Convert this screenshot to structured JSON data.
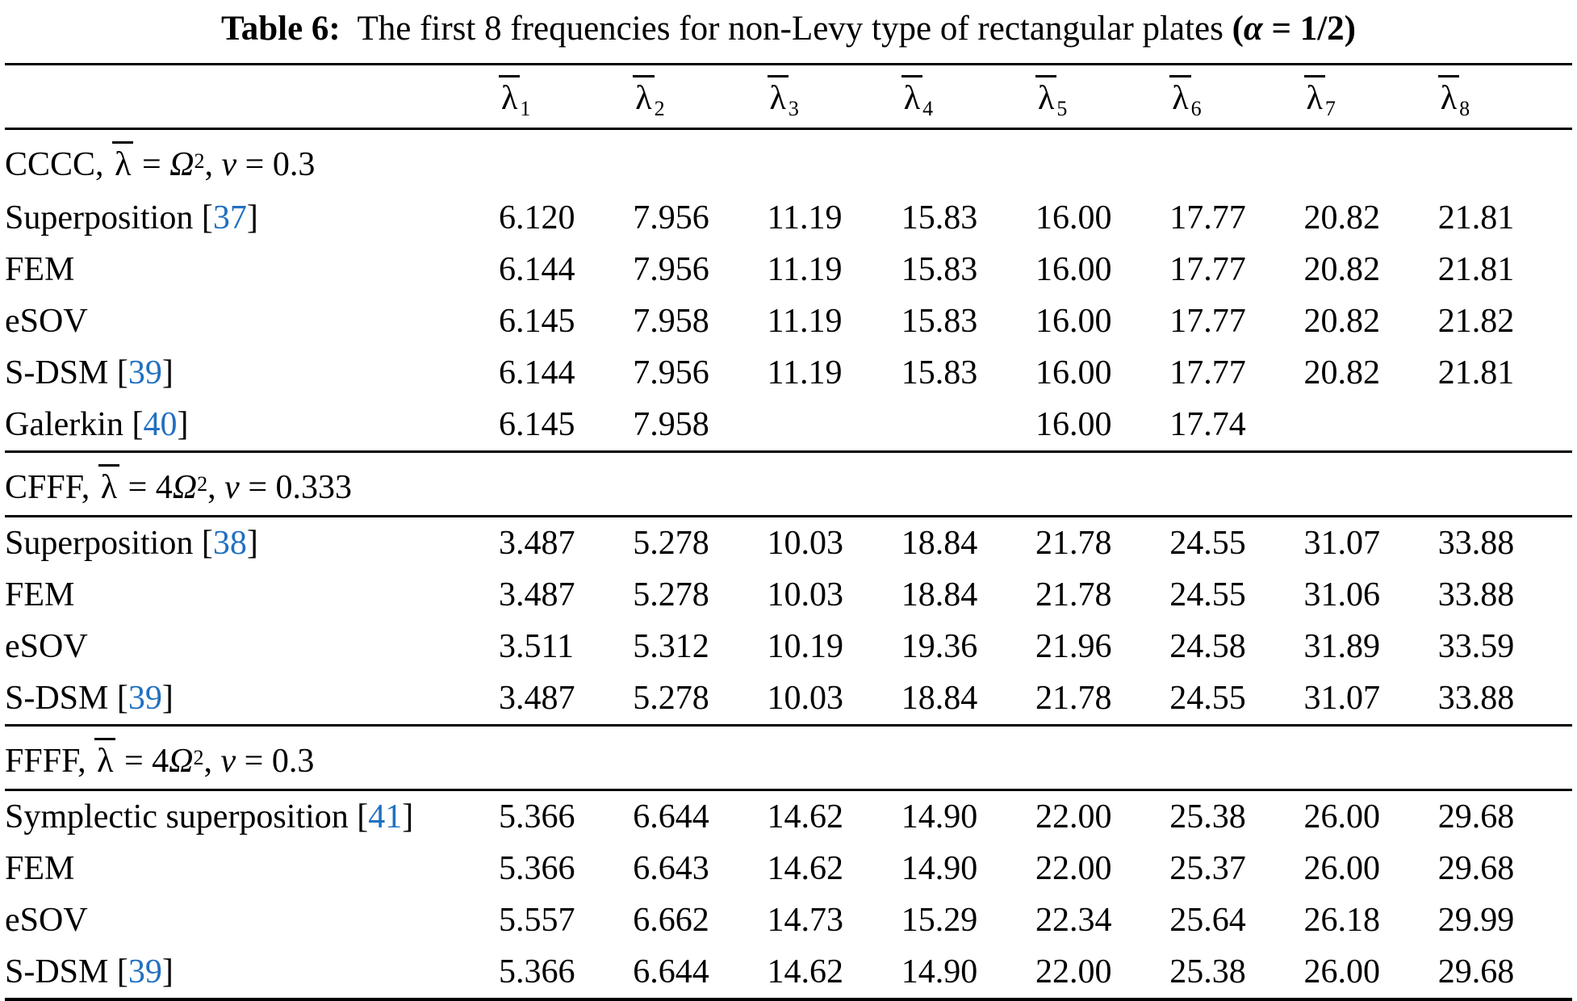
{
  "title": {
    "segments": [
      {
        "t": "Table 6:",
        "s": "bold"
      },
      {
        "t": "  The first 8 frequencies for non-Levy type of rectangular plates ",
        "s": "plain"
      },
      {
        "t": "(",
        "s": "bold"
      },
      {
        "t": "α",
        "s": "boldit"
      },
      {
        "t": " = 1/2)",
        "s": "bold"
      }
    ]
  },
  "columns": [
    {
      "base": "λ",
      "sub": "1"
    },
    {
      "base": "λ",
      "sub": "2"
    },
    {
      "base": "λ",
      "sub": "3"
    },
    {
      "base": "λ",
      "sub": "4"
    },
    {
      "base": "λ",
      "sub": "5"
    },
    {
      "base": "λ",
      "sub": "6"
    },
    {
      "base": "λ",
      "sub": "7"
    },
    {
      "base": "λ",
      "sub": "8"
    }
  ],
  "citation_color": "#2170c0",
  "sections": [
    {
      "id": "CCCC",
      "header_segments": [
        {
          "t": "CCCC, ",
          "s": "plain"
        },
        {
          "t": "λ",
          "s": "lbar"
        },
        {
          "t": " = ",
          "s": "plain"
        },
        {
          "t": "Ω",
          "s": "it"
        },
        {
          "t": "2",
          "s": "sup"
        },
        {
          "t": ", ",
          "s": "plain"
        },
        {
          "t": "ν",
          "s": "it"
        },
        {
          "t": " = 0.3",
          "s": "plain"
        }
      ],
      "rows": [
        {
          "label": "Superposition",
          "cite": "37",
          "values": [
            "6.120",
            "7.956",
            "11.19",
            "15.83",
            "16.00",
            "17.77",
            "20.82",
            "21.81"
          ]
        },
        {
          "label": "FEM",
          "cite": null,
          "values": [
            "6.144",
            "7.956",
            "11.19",
            "15.83",
            "16.00",
            "17.77",
            "20.82",
            "21.81"
          ]
        },
        {
          "label": "eSOV",
          "cite": null,
          "values": [
            "6.145",
            "7.958",
            "11.19",
            "15.83",
            "16.00",
            "17.77",
            "20.82",
            "21.82"
          ]
        },
        {
          "label": "S-DSM",
          "cite": "39",
          "values": [
            "6.144",
            "7.956",
            "11.19",
            "15.83",
            "16.00",
            "17.77",
            "20.82",
            "21.81"
          ]
        },
        {
          "label": "Galerkin",
          "cite": "40",
          "values": [
            "6.145",
            "7.958",
            "",
            "",
            "16.00",
            "17.74",
            "",
            ""
          ]
        }
      ]
    },
    {
      "id": "CFFF",
      "header_segments": [
        {
          "t": "CFFF, ",
          "s": "plain"
        },
        {
          "t": "λ",
          "s": "lbar"
        },
        {
          "t": " = 4",
          "s": "plain"
        },
        {
          "t": "Ω",
          "s": "it"
        },
        {
          "t": "2",
          "s": "sup"
        },
        {
          "t": ", ",
          "s": "plain"
        },
        {
          "t": "ν",
          "s": "it"
        },
        {
          "t": " = 0.333",
          "s": "plain"
        }
      ],
      "rows": [
        {
          "label": "Superposition",
          "cite": "38",
          "values": [
            "3.487",
            "5.278",
            "10.03",
            "18.84",
            "21.78",
            "24.55",
            "31.07",
            "33.88"
          ]
        },
        {
          "label": "FEM",
          "cite": null,
          "values": [
            "3.487",
            "5.278",
            "10.03",
            "18.84",
            "21.78",
            "24.55",
            "31.06",
            "33.88"
          ]
        },
        {
          "label": "eSOV",
          "cite": null,
          "values": [
            "3.511",
            "5.312",
            "10.19",
            "19.36",
            "21.96",
            "24.58",
            "31.89",
            "33.59"
          ]
        },
        {
          "label": "S-DSM",
          "cite": "39",
          "values": [
            "3.487",
            "5.278",
            "10.03",
            "18.84",
            "21.78",
            "24.55",
            "31.07",
            "33.88"
          ]
        }
      ]
    },
    {
      "id": "FFFF",
      "header_segments": [
        {
          "t": "FFFF, ",
          "s": "plain"
        },
        {
          "t": "λ",
          "s": "lbar"
        },
        {
          "t": " = 4",
          "s": "plain"
        },
        {
          "t": "Ω",
          "s": "it"
        },
        {
          "t": "2",
          "s": "sup"
        },
        {
          "t": ", ",
          "s": "plain"
        },
        {
          "t": "ν",
          "s": "it"
        },
        {
          "t": " = 0.3",
          "s": "plain"
        }
      ],
      "rows": [
        {
          "label": "Symplectic superposition",
          "cite": "41",
          "values": [
            "5.366",
            "6.644",
            "14.62",
            "14.90",
            "22.00",
            "25.38",
            "26.00",
            "29.68"
          ]
        },
        {
          "label": "FEM",
          "cite": null,
          "values": [
            "5.366",
            "6.643",
            "14.62",
            "14.90",
            "22.00",
            "25.37",
            "26.00",
            "29.68"
          ]
        },
        {
          "label": "eSOV",
          "cite": null,
          "values": [
            "5.557",
            "6.662",
            "14.73",
            "15.29",
            "22.34",
            "25.64",
            "26.18",
            "29.99"
          ]
        },
        {
          "label": "S-DSM",
          "cite": "39",
          "values": [
            "5.366",
            "6.644",
            "14.62",
            "14.90",
            "22.00",
            "25.38",
            "26.00",
            "29.68"
          ]
        }
      ]
    }
  ]
}
